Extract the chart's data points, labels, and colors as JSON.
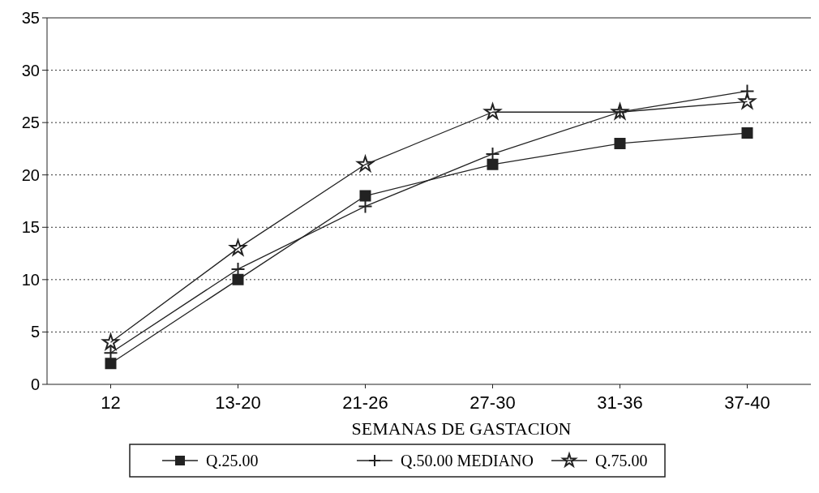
{
  "chart_data": {
    "type": "line",
    "xlabel": "SEMANAS DE GASTACION",
    "categories": [
      "12",
      "13-20",
      "21-26",
      "27-30",
      "31-36",
      "37-40"
    ],
    "series": [
      {
        "name": "Q.25.00",
        "color": "#222222",
        "marker": "square",
        "values": [
          2,
          10,
          18,
          21,
          23,
          24
        ]
      },
      {
        "name": "Q.50.00  MEDIANO",
        "color": "#222222",
        "marker": "cross",
        "values": [
          3,
          11,
          17,
          22,
          26,
          28
        ]
      },
      {
        "name": "Q.75.00",
        "color": "#222222",
        "marker": "star",
        "values": [
          4,
          13,
          21,
          26,
          26,
          27
        ]
      }
    ],
    "ylim": [
      0,
      35
    ],
    "yticks": [
      0,
      5,
      10,
      15,
      20,
      25,
      30,
      35
    ],
    "grid": "y",
    "legend": "bottom",
    "line_style": "solid"
  }
}
